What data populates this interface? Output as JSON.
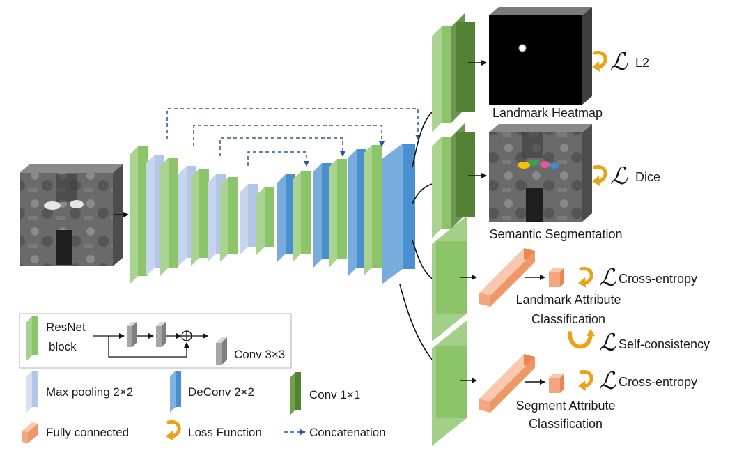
{
  "outputs": {
    "heatmap_caption": "Landmark Heatmap",
    "seg_caption": "Semantic Segmentation",
    "landmark_attr_caption": [
      "Landmark Attribute",
      "Classification"
    ],
    "segment_attr_caption": [
      "Segment Attribute",
      "Classification"
    ]
  },
  "losses": {
    "symbol": "ℒ",
    "l2": "L2",
    "dice": "Dice",
    "ce1": "Cross-entropy",
    "self": "Self-consistency",
    "ce2": "Cross-entropy"
  },
  "legend": {
    "resnet": [
      "ResNet",
      "block"
    ],
    "conv3": "Conv 3×3",
    "maxpool": "Max pooling 2×2",
    "deconv": "DeConv 2×2",
    "conv1": "Conv 1×1",
    "fc": "Fully connected",
    "lossfn": "Loss Function",
    "concat": "Concatenation"
  },
  "colors": {
    "resnet": "#8cc46a",
    "maxpool": "#b4c6e7",
    "deconv": "#4a90d0",
    "conv1": "#548235",
    "fc": "#f4a582",
    "loss": "#e8a317",
    "concat": "#2f5597"
  }
}
